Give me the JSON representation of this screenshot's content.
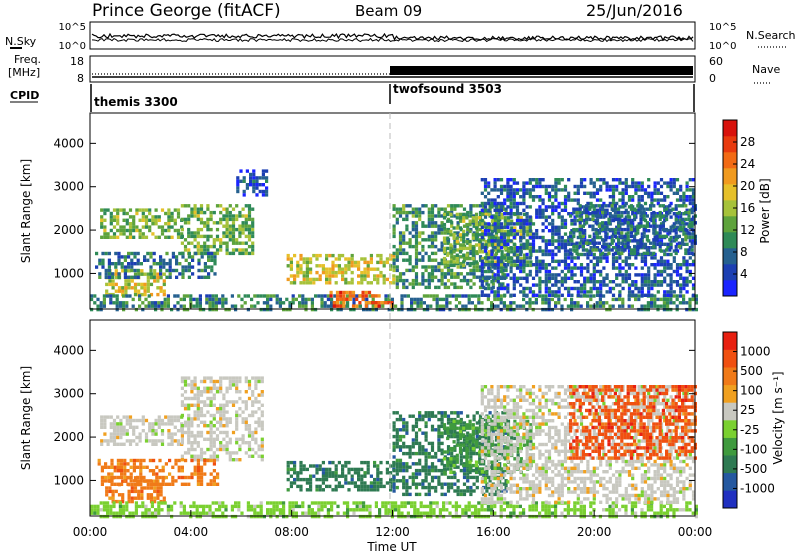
{
  "header": {
    "title": "Prince George (fitACF)",
    "beam": "Beam 09",
    "date": "25/Jun/2016"
  },
  "status_panels": {
    "nsky_label": "N.Sky",
    "nsky_ticks": [
      "10^5",
      "10^0"
    ],
    "nsearch_label": "N.Search",
    "nsearch_ticks": [
      "10^5",
      "10^0"
    ],
    "freq_label_line1": "Freq.",
    "freq_label_line2": "[MHz]",
    "freq_ticks": [
      "18",
      "8"
    ],
    "nave_label": "Nave",
    "nave_ticks": [
      "60",
      "0"
    ],
    "cpid_label": "CPID",
    "cpid_segments": [
      {
        "name": "themis 3300",
        "start_hour": 0
      },
      {
        "name": "twofsound 3503",
        "start_hour": 12
      }
    ]
  },
  "colors": {
    "power": [
      "#1a24ff",
      "#1c3fb2",
      "#25608f",
      "#2f8a57",
      "#5ea33c",
      "#a6c23a",
      "#e6c02a",
      "#f09a1f",
      "#f26a14",
      "#e83a0e",
      "#d8120c"
    ],
    "velocity": [
      "#2030c0",
      "#2458a0",
      "#2e7a52",
      "#3f9a3e",
      "#7ad030",
      "#c8c8c0",
      "#f0a020",
      "#f07a18",
      "#f05010",
      "#e82010"
    ]
  },
  "chart_data": [
    {
      "type": "heatmap",
      "name": "power-panel",
      "ylabel": "Slant Range [km]",
      "xlim_hours": [
        0,
        24
      ],
      "ylim": [
        180,
        4700
      ],
      "yticks": [
        "4000",
        "3000",
        "2000",
        "1000"
      ],
      "colorbar": {
        "label": "Power [dB]",
        "ticks": [
          "28",
          "24",
          "20",
          "16",
          "12",
          "8",
          "4"
        ],
        "range": [
          0,
          32
        ]
      },
      "regions": [
        {
          "t": [
            0.4,
            3.6
          ],
          "r": [
            1800,
            2500
          ],
          "v": 14
        },
        {
          "t": [
            3.6,
            6.5
          ],
          "r": [
            1500,
            2600
          ],
          "v": 13
        },
        {
          "t": [
            0.6,
            2.9
          ],
          "r": [
            500,
            1100
          ],
          "v": 18
        },
        {
          "t": [
            0.2,
            5.0
          ],
          "r": [
            900,
            1500
          ],
          "v": 7
        },
        {
          "t": [
            0.0,
            24.0
          ],
          "r": [
            200,
            520
          ],
          "v": 9
        },
        {
          "t": [
            7.8,
            12.0
          ],
          "r": [
            800,
            1450
          ],
          "v": 18
        },
        {
          "t": [
            9.5,
            12.0
          ],
          "r": [
            250,
            600
          ],
          "v": 26
        },
        {
          "t": [
            12.0,
            16.5
          ],
          "r": [
            700,
            2600
          ],
          "v": 10
        },
        {
          "t": [
            14.0,
            17.5
          ],
          "r": [
            1200,
            2400
          ],
          "v": 13
        },
        {
          "t": [
            15.5,
            24.0
          ],
          "r": [
            500,
            3200
          ],
          "v": 5
        },
        {
          "t": [
            19.0,
            24.0
          ],
          "r": [
            1500,
            2600
          ],
          "v": 7
        },
        {
          "t": [
            5.8,
            7.0
          ],
          "r": [
            2800,
            3400
          ],
          "v": 4
        }
      ]
    },
    {
      "type": "heatmap",
      "name": "velocity-panel",
      "ylabel": "Slant Range [km]",
      "xlabel": "Time UT",
      "xlim_hours": [
        0,
        24
      ],
      "ylim": [
        180,
        4700
      ],
      "yticks": [
        "4000",
        "3000",
        "2000",
        "1000"
      ],
      "xticks": [
        "00:00",
        "04:00",
        "08:00",
        "12:00",
        "16:00",
        "20:00",
        "00:00"
      ],
      "xtick_hours": [
        0,
        4,
        8,
        12,
        16,
        20,
        24
      ],
      "colorbar": {
        "label": "Velocity [m s⁻¹]",
        "ticks": [
          "1000",
          "500",
          "100",
          "25",
          "-25",
          "-100",
          "-500",
          "-1000"
        ]
      },
      "regions": [
        {
          "t": [
            0.4,
            3.6
          ],
          "r": [
            1800,
            2500
          ],
          "v": 5
        },
        {
          "t": [
            3.6,
            6.8
          ],
          "r": [
            1500,
            3400
          ],
          "v": 5
        },
        {
          "t": [
            0.6,
            3.0
          ],
          "r": [
            500,
            1100
          ],
          "v": 7
        },
        {
          "t": [
            0.3,
            5.0
          ],
          "r": [
            900,
            1500
          ],
          "v": 7
        },
        {
          "t": [
            0.0,
            24.0
          ],
          "r": [
            200,
            520
          ],
          "v": 4
        },
        {
          "t": [
            7.8,
            12.0
          ],
          "r": [
            800,
            1450
          ],
          "v": 2
        },
        {
          "t": [
            12.0,
            16.5
          ],
          "r": [
            700,
            2600
          ],
          "v": 2
        },
        {
          "t": [
            14.0,
            17.5
          ],
          "r": [
            1200,
            2400
          ],
          "v": 3
        },
        {
          "t": [
            15.5,
            24.0
          ],
          "r": [
            500,
            3200
          ],
          "v": 5
        },
        {
          "t": [
            19.0,
            24.0
          ],
          "r": [
            1500,
            3200
          ],
          "v": 8
        }
      ]
    }
  ]
}
